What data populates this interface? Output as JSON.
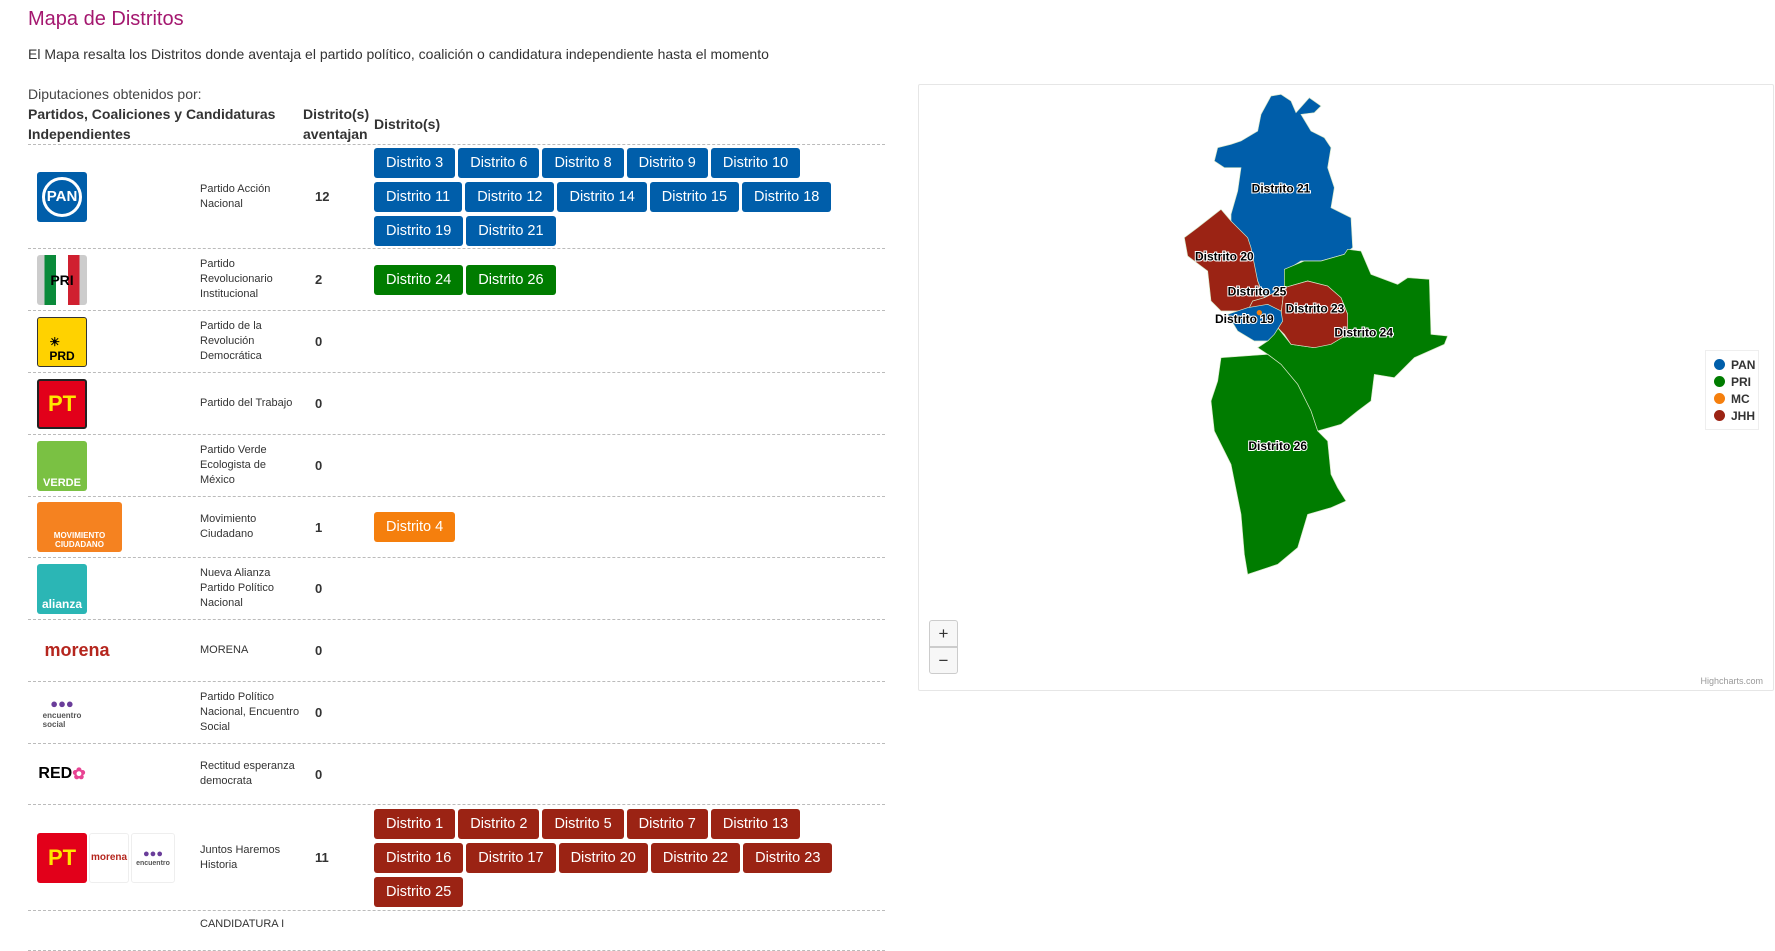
{
  "page": {
    "title": "Mapa de Distritos",
    "description": "El Mapa resalta los Distritos donde aventaja el partido político, coalición o candidatura independiente hasta el momento",
    "subtitle": "Diputaciones obtenidos por:"
  },
  "table": {
    "headers": [
      "Partidos, Coaliciones y Candidaturas Independientes",
      "Distrito(s) aventajan",
      "Distrito(s)"
    ],
    "rows": [
      {
        "logo": "PAN",
        "name": "Partido Acción Nacional",
        "count": "12",
        "color": "#005eaa",
        "districts": [
          "Distrito 3",
          "Distrito 6",
          "Distrito 8",
          "Distrito 9",
          "Distrito 10",
          "Distrito 11",
          "Distrito 12",
          "Distrito 14",
          "Distrito 15",
          "Distrito 18",
          "Distrito 19",
          "Distrito 21"
        ]
      },
      {
        "logo": "PRI",
        "name": "Partido Revolucionario Institucional",
        "count": "2",
        "color": "#007c00",
        "districts": [
          "Distrito 24",
          "Distrito 26"
        ]
      },
      {
        "logo": "PRD",
        "name": "Partido de la Revolución Democrática",
        "count": "0",
        "districts": []
      },
      {
        "logo": "PT",
        "name": "Partido del Trabajo",
        "count": "0",
        "districts": []
      },
      {
        "logo": "VERDE",
        "name": "Partido Verde Ecologista de México",
        "count": "0",
        "districts": []
      },
      {
        "logo": "MOVIMIENTO CIUDADANO",
        "name": "Movimiento Ciudadano",
        "count": "1",
        "color": "#f57f0d",
        "districts": [
          "Distrito 4"
        ]
      },
      {
        "logo": "alianza",
        "name": "Nueva Alianza Partido Político Nacional",
        "count": "0",
        "districts": []
      },
      {
        "logo": "morena",
        "name": "MORENA",
        "count": "0",
        "districts": []
      },
      {
        "logo": "encuentro social",
        "name": "Partido Político Nacional, Encuentro Social",
        "count": "0",
        "districts": []
      },
      {
        "logo": "RED",
        "name": "Rectitud esperanza democrata",
        "count": "0",
        "districts": []
      },
      {
        "logo": "PT morena encuentro",
        "name": "Juntos Haremos Historia",
        "count": "11",
        "color": "#9b2314",
        "districts": [
          "Distrito 1",
          "Distrito 2",
          "Distrito 5",
          "Distrito 7",
          "Distrito 13",
          "Distrito 16",
          "Distrito 17",
          "Distrito 20",
          "Distrito 22",
          "Distrito 23",
          "Distrito 25"
        ]
      },
      {
        "name": "CANDIDATURA I",
        "count": "",
        "districts": []
      }
    ]
  },
  "map": {
    "zoom_in": "+",
    "zoom_out": "−",
    "credits": "Highcharts.com",
    "legend": [
      {
        "name": "PAN",
        "color": "#005eaa"
      },
      {
        "name": "PRI",
        "color": "#007c00"
      },
      {
        "name": "MC",
        "color": "#f57f0d"
      },
      {
        "name": "JHH",
        "color": "#9b2314"
      }
    ],
    "labels": {
      "d21": "Distrito 21",
      "d20": "Distrito 20",
      "d25": "Distrito 25",
      "d23": "Distrito 23",
      "d19": "Distrito 19",
      "d24": "Distrito 24",
      "d26": "Distrito 26"
    }
  }
}
